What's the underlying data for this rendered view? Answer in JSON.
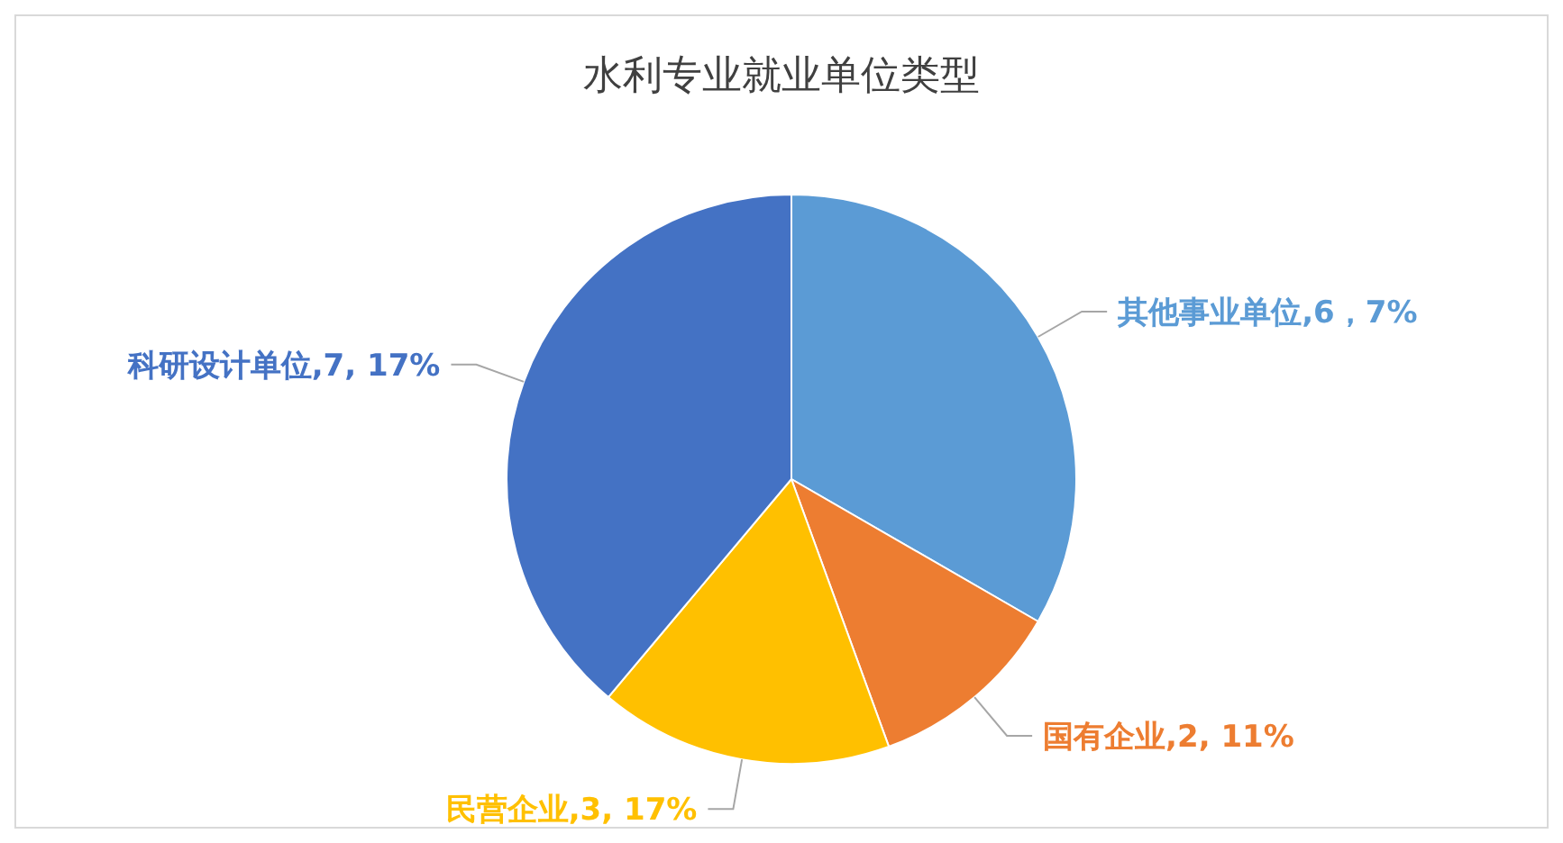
{
  "chart_data": {
    "type": "pie",
    "title": "水利专业就业单位类型",
    "categories": [
      "其他事业单位",
      "国有企业",
      "民营企业",
      "科研设计单位"
    ],
    "values": [
      6,
      2,
      3,
      7
    ],
    "colors": [
      "#5b9bd5",
      "#ed7d31",
      "#ffc000",
      "#4472c4"
    ],
    "value_labels": [
      "6，7%",
      "2, 11%",
      "3, 17%",
      "7, 17%"
    ]
  }
}
